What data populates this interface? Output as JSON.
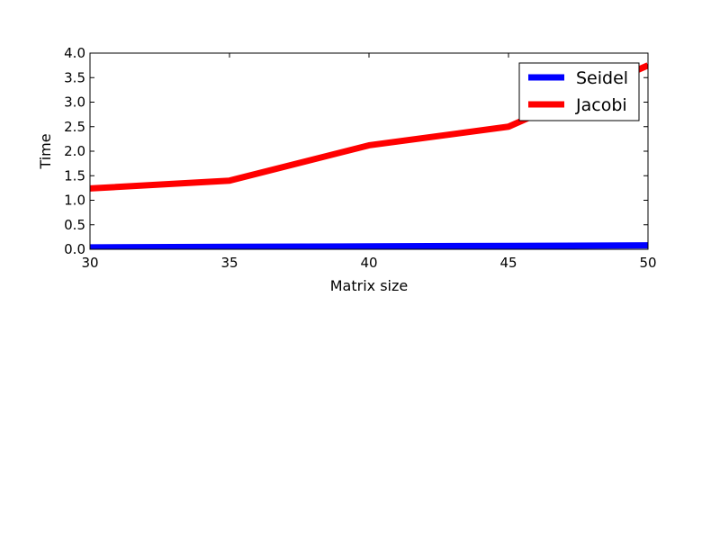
{
  "chart_data": {
    "type": "line",
    "xlabel": "Matrix size",
    "ylabel": "Time",
    "xlim": [
      30,
      50
    ],
    "ylim": [
      0.0,
      4.0
    ],
    "x_ticks": [
      30,
      35,
      40,
      45,
      50
    ],
    "y_ticks": [
      0.0,
      0.5,
      1.0,
      1.5,
      2.0,
      2.5,
      3.0,
      3.5,
      4.0
    ],
    "x_tick_labels": [
      "30",
      "35",
      "40",
      "45",
      "50"
    ],
    "y_tick_labels": [
      "0.0",
      "0.5",
      "1.0",
      "1.5",
      "2.0",
      "2.5",
      "3.0",
      "3.5",
      "4.0"
    ],
    "x": [
      30,
      35,
      40,
      45,
      50
    ],
    "series": [
      {
        "name": "Seidel",
        "color": "#0000ff",
        "values": [
          0.04,
          0.05,
          0.06,
          0.07,
          0.08
        ]
      },
      {
        "name": "Jacobi",
        "color": "#ff0000",
        "values": [
          1.24,
          1.4,
          2.12,
          2.5,
          3.75
        ]
      }
    ],
    "grid": false,
    "legend_position": "top-right"
  }
}
